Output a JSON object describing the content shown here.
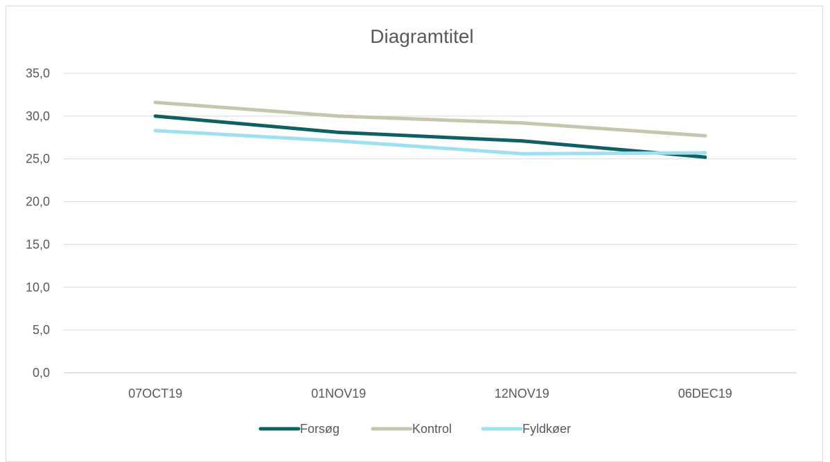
{
  "chart_data": {
    "type": "line",
    "title": "Diagramtitel",
    "categories": [
      "07OCT19",
      "01NOV19",
      "12NOV19",
      "06DEC19"
    ],
    "ylim": [
      0,
      35
    ],
    "yticks": [
      "0,0",
      "5,0",
      "10,0",
      "15,0",
      "20,0",
      "25,0",
      "30,0",
      "35,0"
    ],
    "grid": true,
    "legend_position": "bottom",
    "series": [
      {
        "name": "Forsøg",
        "color": "#0f5f63",
        "values": [
          30.0,
          28.1,
          27.1,
          25.2
        ]
      },
      {
        "name": "Kontrol",
        "color": "#c8c5ae",
        "values": [
          31.6,
          30.0,
          29.2,
          27.7
        ]
      },
      {
        "name": "Fyldkøer",
        "color": "#9edff2",
        "values": [
          28.3,
          27.1,
          25.6,
          25.7
        ]
      }
    ]
  }
}
